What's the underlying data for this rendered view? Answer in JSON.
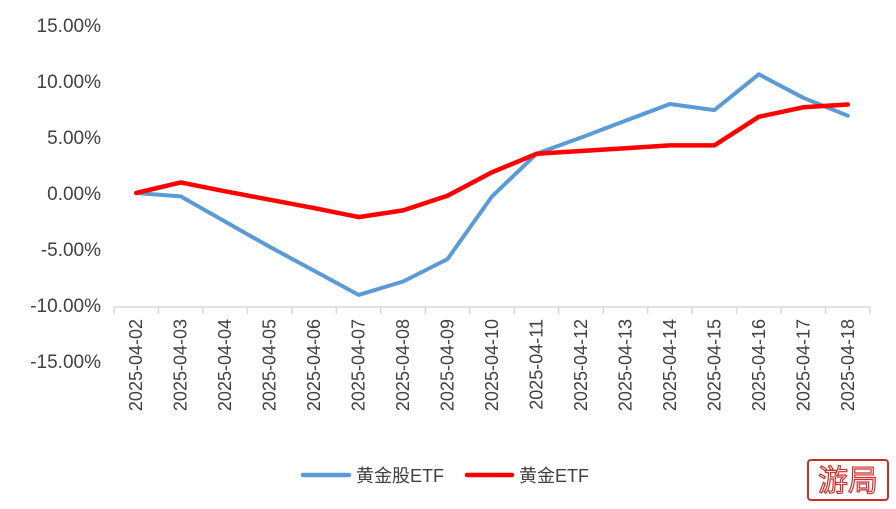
{
  "chart_data": {
    "type": "line",
    "title": "",
    "xlabel": "",
    "ylabel": "",
    "categories": [
      "2025-04-02",
      "2025-04-03",
      "2025-04-04",
      "2025-04-05",
      "2025-04-06",
      "2025-04-07",
      "2025-04-08",
      "2025-04-09",
      "2025-04-10",
      "2025-04-11",
      "2025-04-12",
      "2025-04-13",
      "2025-04-14",
      "2025-04-15",
      "2025-04-16",
      "2025-04-17",
      "2025-04-18"
    ],
    "ylim": [
      -15,
      15
    ],
    "yticks": [
      15,
      10,
      5,
      0,
      -5,
      -10,
      -15
    ],
    "ytick_labels": [
      "15.00%",
      "10.00%",
      "5.00%",
      "0.00%",
      "-5.00%",
      "-10.00%",
      "-15.00%"
    ],
    "series": [
      {
        "name": "黄金股ETF",
        "color": "#5b9bd5",
        "values": [
          0.0,
          -0.3,
          -2.55,
          -4.8,
          -6.95,
          -9.1,
          -7.9,
          -5.9,
          -0.3,
          3.5,
          4.95,
          6.45,
          7.95,
          7.4,
          10.6,
          8.5,
          6.9
        ]
      },
      {
        "name": "黄金ETF",
        "color": "#ff0000",
        "values": [
          0.0,
          0.95,
          0.15,
          -0.6,
          -1.35,
          -2.15,
          -1.55,
          -0.25,
          1.85,
          3.5,
          3.75,
          4.0,
          4.25,
          4.25,
          6.8,
          7.65,
          7.9
        ]
      }
    ],
    "grid": false,
    "legend_position": "bottom-center"
  },
  "watermark": {
    "text": "游局"
  }
}
